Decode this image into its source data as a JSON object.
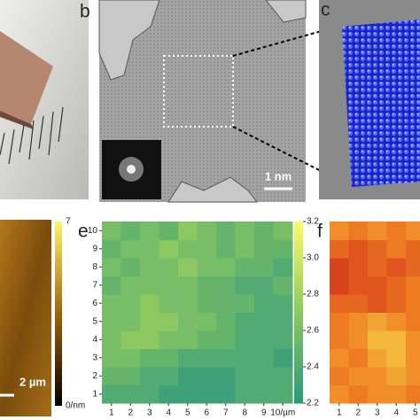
{
  "panels": {
    "b": {
      "label": "b",
      "scale_bar": "1 nm"
    },
    "c": {
      "label": "c"
    },
    "d": {
      "scale_bar": "2 µm",
      "clim": [
        0,
        7
      ],
      "colorbar_ticks": [
        7,
        {
          "value": 0,
          "label": "0/nm"
        }
      ]
    },
    "e": {
      "label": "e"
    },
    "f": {
      "label": "f"
    }
  },
  "chart_data": [
    {
      "type": "heatmap",
      "x": [
        1,
        2,
        3,
        4,
        5,
        6,
        7,
        8,
        9,
        10
      ],
      "y": [
        1,
        2,
        3,
        4,
        5,
        6,
        7,
        8,
        9,
        10
      ],
      "values": [
        [
          2.4,
          2.4,
          2.4,
          2.3,
          2.3,
          2.3,
          2.3,
          2.4,
          2.4,
          2.4
        ],
        [
          2.5,
          2.5,
          2.4,
          2.4,
          2.3,
          2.3,
          2.3,
          2.4,
          2.4,
          2.4
        ],
        [
          2.6,
          2.6,
          2.5,
          2.5,
          2.4,
          2.4,
          2.4,
          2.4,
          2.4,
          2.3
        ],
        [
          2.6,
          2.7,
          2.7,
          2.6,
          2.6,
          2.5,
          2.5,
          2.4,
          2.4,
          2.4
        ],
        [
          2.6,
          2.6,
          2.7,
          2.7,
          2.6,
          2.6,
          2.5,
          2.4,
          2.4,
          2.4
        ],
        [
          2.6,
          2.6,
          2.7,
          2.6,
          2.6,
          2.5,
          2.5,
          2.5,
          2.4,
          2.4
        ],
        [
          2.5,
          2.6,
          2.6,
          2.6,
          2.6,
          2.5,
          2.5,
          2.4,
          2.4,
          2.5
        ],
        [
          2.6,
          2.5,
          2.6,
          2.6,
          2.7,
          2.6,
          2.6,
          2.5,
          2.5,
          2.4
        ],
        [
          2.5,
          2.6,
          2.6,
          2.7,
          2.6,
          2.6,
          2.5,
          2.6,
          2.5,
          2.5
        ],
        [
          2.6,
          2.5,
          2.6,
          2.5,
          2.7,
          2.6,
          2.5,
          2.6,
          2.5,
          2.6
        ]
      ],
      "xlim": [
        0.5,
        10.5
      ],
      "ylim": [
        0.5,
        10.5
      ],
      "xticks": [
        1,
        2,
        3,
        4,
        5,
        6,
        7,
        8,
        9,
        {
          "value": 10,
          "label": "10/µm"
        }
      ],
      "yticks": [
        1,
        2,
        3,
        4,
        5,
        6,
        7,
        8,
        9,
        10
      ],
      "clim": [
        2.2,
        3.2
      ],
      "cticks": [
        2.2,
        2.4,
        2.6,
        2.8,
        {
          "value": 3,
          "label": "3.0"
        },
        3.2
      ],
      "colormap": [
        "#2a987e",
        "#8cc760",
        "#fbfb68"
      ]
    },
    {
      "type": "heatmap",
      "x": [
        1,
        2,
        3,
        4,
        5
      ],
      "y": [
        1,
        2,
        3,
        4,
        5,
        6,
        7,
        8,
        9,
        10
      ],
      "values": [
        [
          2.8,
          2.7,
          2.8,
          2.8,
          2.7
        ],
        [
          2.7,
          2.8,
          2.8,
          2.9,
          2.8
        ],
        [
          2.8,
          2.7,
          2.9,
          3.0,
          2.8
        ],
        [
          2.7,
          2.8,
          3.0,
          3.0,
          2.8
        ],
        [
          2.7,
          2.8,
          2.9,
          2.8,
          2.7
        ],
        [
          2.6,
          2.6,
          2.5,
          2.6,
          2.7
        ],
        [
          2.4,
          2.5,
          2.5,
          2.6,
          2.7
        ],
        [
          2.4,
          2.5,
          2.6,
          2.5,
          2.6
        ],
        [
          2.6,
          2.5,
          2.6,
          2.7,
          2.6
        ],
        [
          2.8,
          2.7,
          2.8,
          2.7,
          2.8
        ]
      ],
      "xlim": [
        0.5,
        10.5
      ],
      "ylim": [
        0.5,
        10.5
      ],
      "xticks": [
        1,
        2,
        3,
        4,
        5
      ],
      "clim": [
        2.2,
        3.2
      ],
      "colormap": [
        "#c81e16",
        "#ee7a22",
        "#f8e34c"
      ]
    }
  ]
}
